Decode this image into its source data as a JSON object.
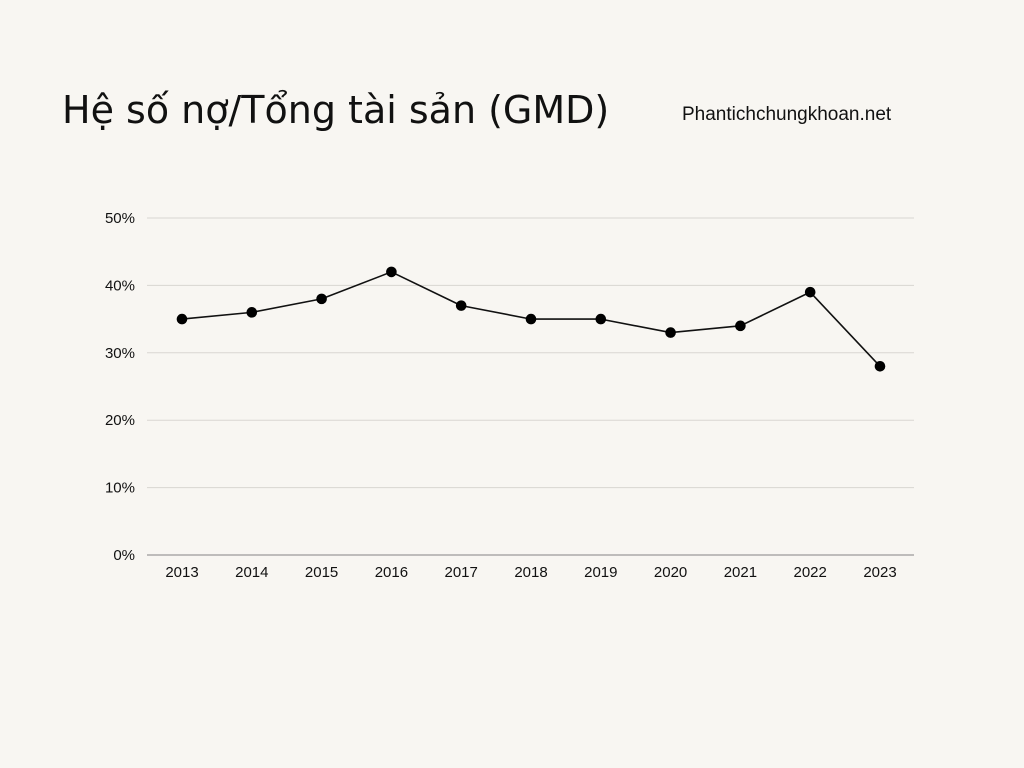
{
  "header": {
    "title": "Hệ số nợ/Tổng tài sản (GMD)",
    "website": "Phantichchungkhoan.net"
  },
  "colors": {
    "background": "#f8f6f2",
    "line": "#111111",
    "marker": "#000000",
    "grid": "#d9d6d1",
    "axis": "#9a9a9a"
  },
  "chart_data": {
    "type": "line",
    "categories": [
      "2013",
      "2014",
      "2015",
      "2016",
      "2017",
      "2018",
      "2019",
      "2020",
      "2021",
      "2022",
      "2023"
    ],
    "series": [
      {
        "values": [
          35,
          36,
          38,
          42,
          37,
          35,
          35,
          33,
          34,
          39,
          28
        ]
      }
    ],
    "y_ticks": [
      "0%",
      "10%",
      "20%",
      "30%",
      "40%",
      "50%"
    ],
    "ylim": [
      0,
      50
    ],
    "grid": true,
    "legend": "none"
  }
}
